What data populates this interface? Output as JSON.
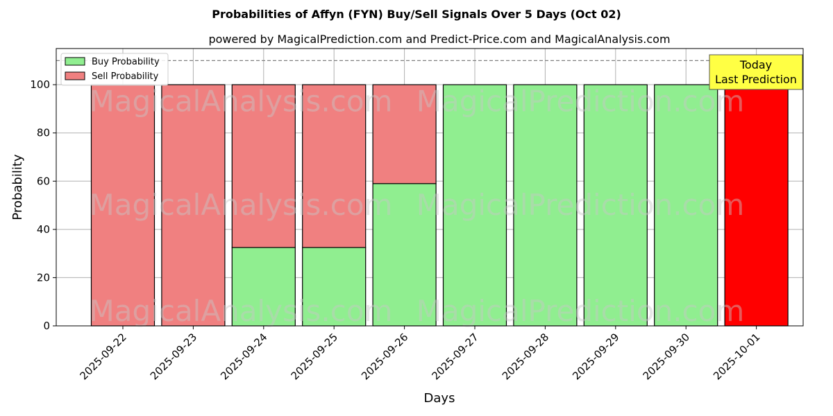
{
  "chart_data": {
    "type": "bar",
    "stacked": true,
    "title": "Probabilities of Affyn (FYN) Buy/Sell Signals Over 5 Days (Oct 02)",
    "subtitle": "powered by MagicalPrediction.com and Predict-Price.com and MagicalAnalysis.com",
    "xlabel": "Days",
    "ylabel": "Probability",
    "ylim": [
      0,
      115
    ],
    "yticks": [
      0,
      20,
      40,
      60,
      80,
      100
    ],
    "grid": true,
    "legend_placement": "top-left",
    "reference_line": 110,
    "categories": [
      "2025-09-22",
      "2025-09-23",
      "2025-09-24",
      "2025-09-25",
      "2025-09-26",
      "2025-09-27",
      "2025-09-28",
      "2025-09-29",
      "2025-09-30",
      "2025-10-01"
    ],
    "series": [
      {
        "name": "Buy Probability",
        "color": "#90ee90",
        "values": [
          0,
          0,
          32.5,
          32.5,
          59,
          100,
          100,
          100,
          100,
          0
        ]
      },
      {
        "name": "Sell Probability",
        "color": "#f08080",
        "values": [
          100,
          100,
          67.5,
          67.5,
          41,
          0,
          0,
          0,
          0,
          100
        ]
      }
    ],
    "highlight": {
      "category": "2025-10-01",
      "color": "#ff0000"
    },
    "annotation": {
      "lines": [
        "Today",
        "Last Prediction"
      ],
      "background": "#ffff44"
    },
    "watermarks": [
      "MagicalAnalysis.com",
      "MagicalPrediction.com"
    ]
  }
}
